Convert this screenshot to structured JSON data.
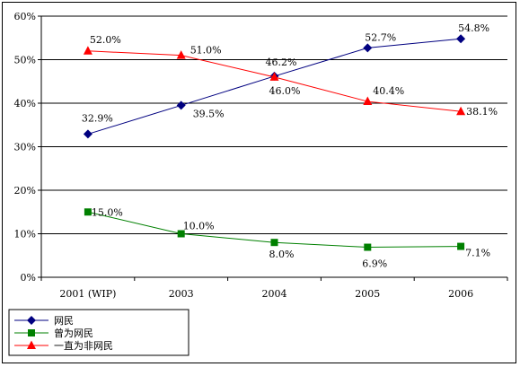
{
  "chart_data": {
    "type": "line",
    "title": "",
    "xlabel": "",
    "ylabel": "",
    "categories": [
      "2001 (WIP)",
      "2003",
      "2004",
      "2005",
      "2006"
    ],
    "ylim": [
      0,
      60
    ],
    "y_ticks": [
      "0%",
      "10%",
      "20%",
      "30%",
      "40%",
      "50%",
      "60%"
    ],
    "grid": "horizontal",
    "legend_position": "bottom-left",
    "series": [
      {
        "name": "网民",
        "values": [
          32.9,
          39.5,
          46.2,
          52.7,
          54.8
        ],
        "labels": [
          "32.9%",
          "39.5%",
          "46.2%",
          "52.7%",
          "54.8%"
        ],
        "color": "#000080",
        "marker": "diamond"
      },
      {
        "name": "曾为网民",
        "values": [
          15.0,
          10.0,
          8.0,
          6.9,
          7.1
        ],
        "labels": [
          "15.0%",
          "10.0%",
          "8.0%",
          "6.9%",
          "7.1%"
        ],
        "color": "#008000",
        "marker": "square"
      },
      {
        "name": "一直为非网民",
        "values": [
          52.0,
          51.0,
          46.0,
          40.4,
          38.1
        ],
        "labels": [
          "52.0%",
          "51.0%",
          "46.0%",
          "40.4%",
          "38.1%"
        ],
        "color": "#ff0000",
        "marker": "triangle"
      }
    ]
  }
}
